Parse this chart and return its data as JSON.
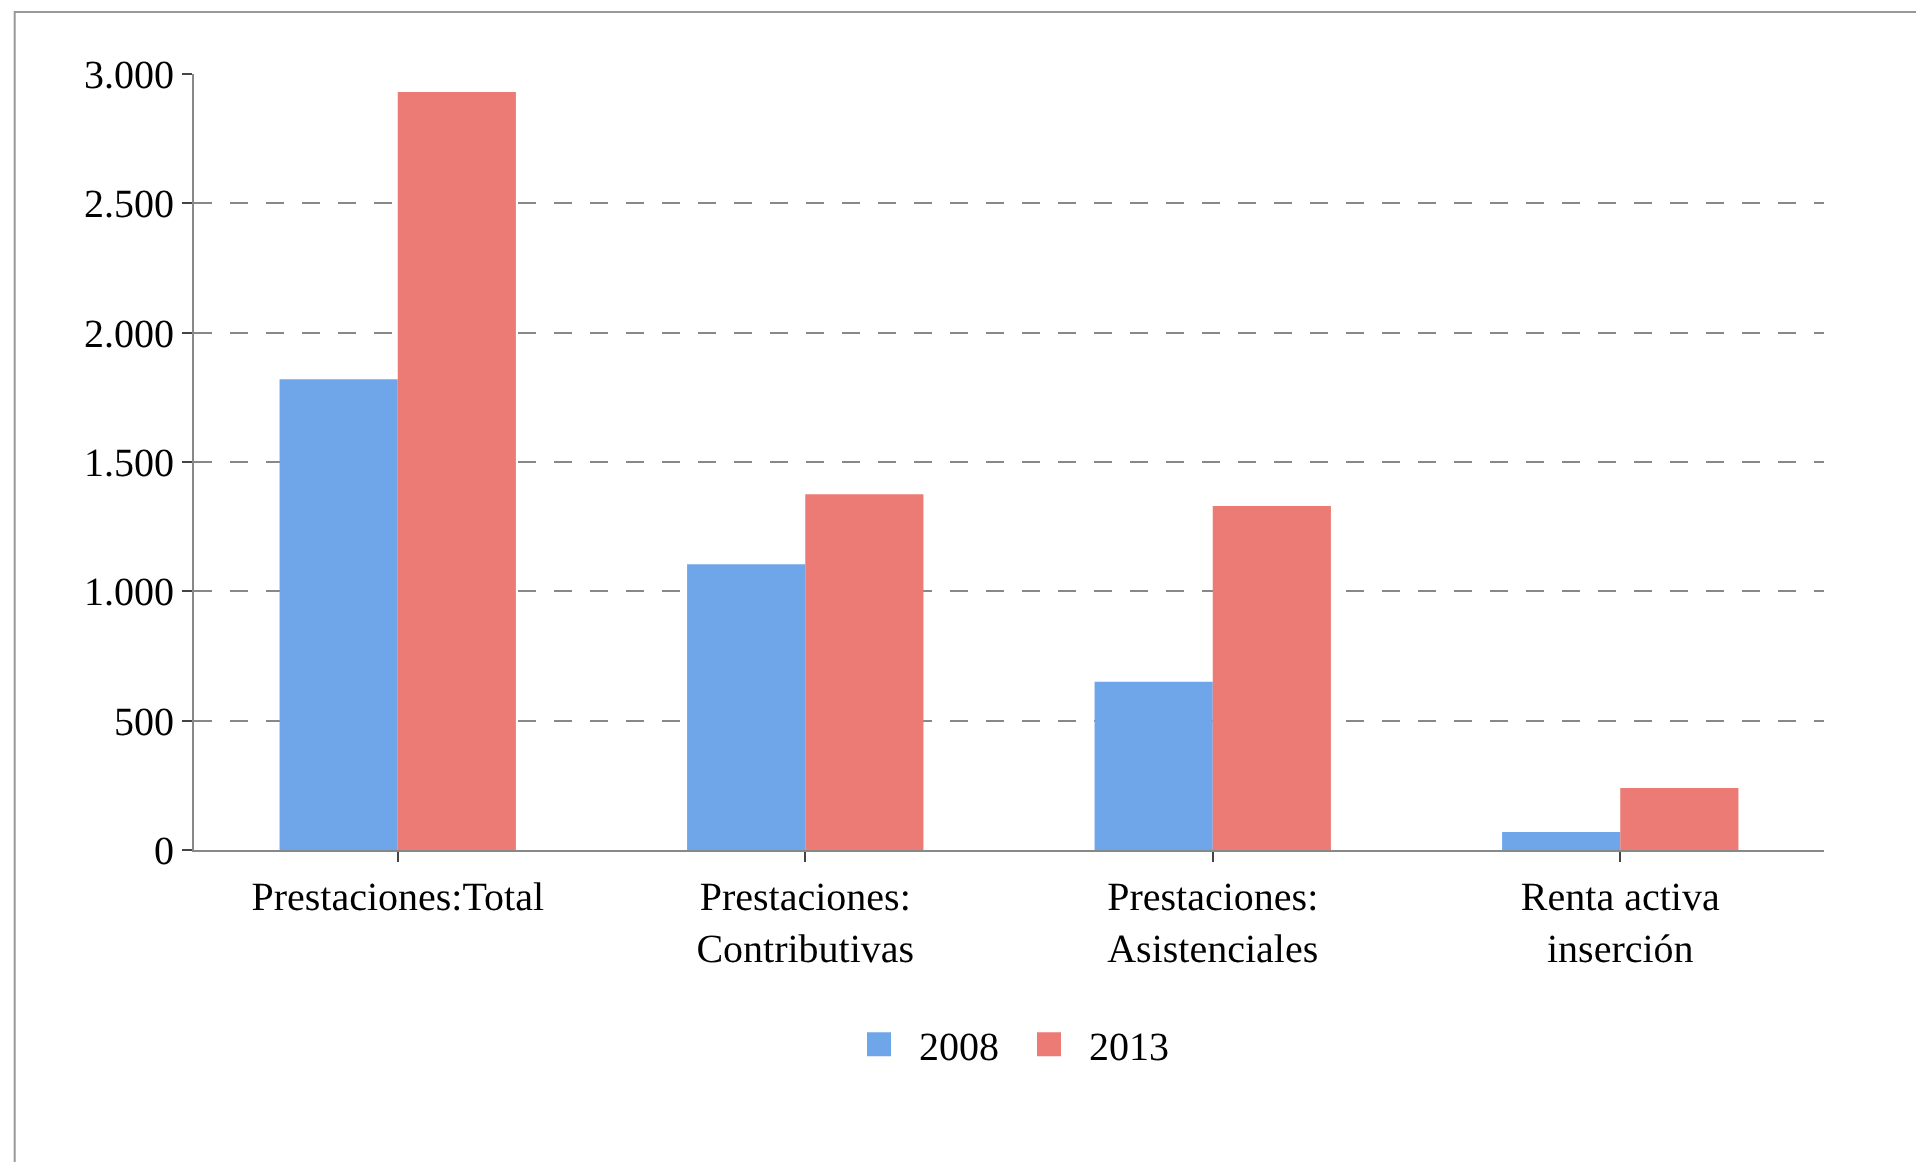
{
  "chart_data": {
    "type": "bar",
    "categories": [
      "Prestaciones:Total",
      "Prestaciones:\nContributivas",
      "Prestaciones:\nAsistenciales",
      "Renta activa\ninserción"
    ],
    "series": [
      {
        "name": "2008",
        "color": "#6fa6ea",
        "values": [
          1820,
          1105,
          650,
          70
        ]
      },
      {
        "name": "2013",
        "color": "#ec7b75",
        "values": [
          2930,
          1375,
          1330,
          240
        ]
      }
    ],
    "ylim": [
      0,
      3000
    ],
    "yticks": [
      {
        "value": 0,
        "label": "0"
      },
      {
        "value": 500,
        "label": "500"
      },
      {
        "value": 1000,
        "label": "1.000"
      },
      {
        "value": 1500,
        "label": "1.500"
      },
      {
        "value": 2000,
        "label": "2.000"
      },
      {
        "value": 2500,
        "label": "2.500"
      },
      {
        "value": 3000,
        "label": "3.000"
      }
    ],
    "grid": "y",
    "legend": "bottom"
  }
}
